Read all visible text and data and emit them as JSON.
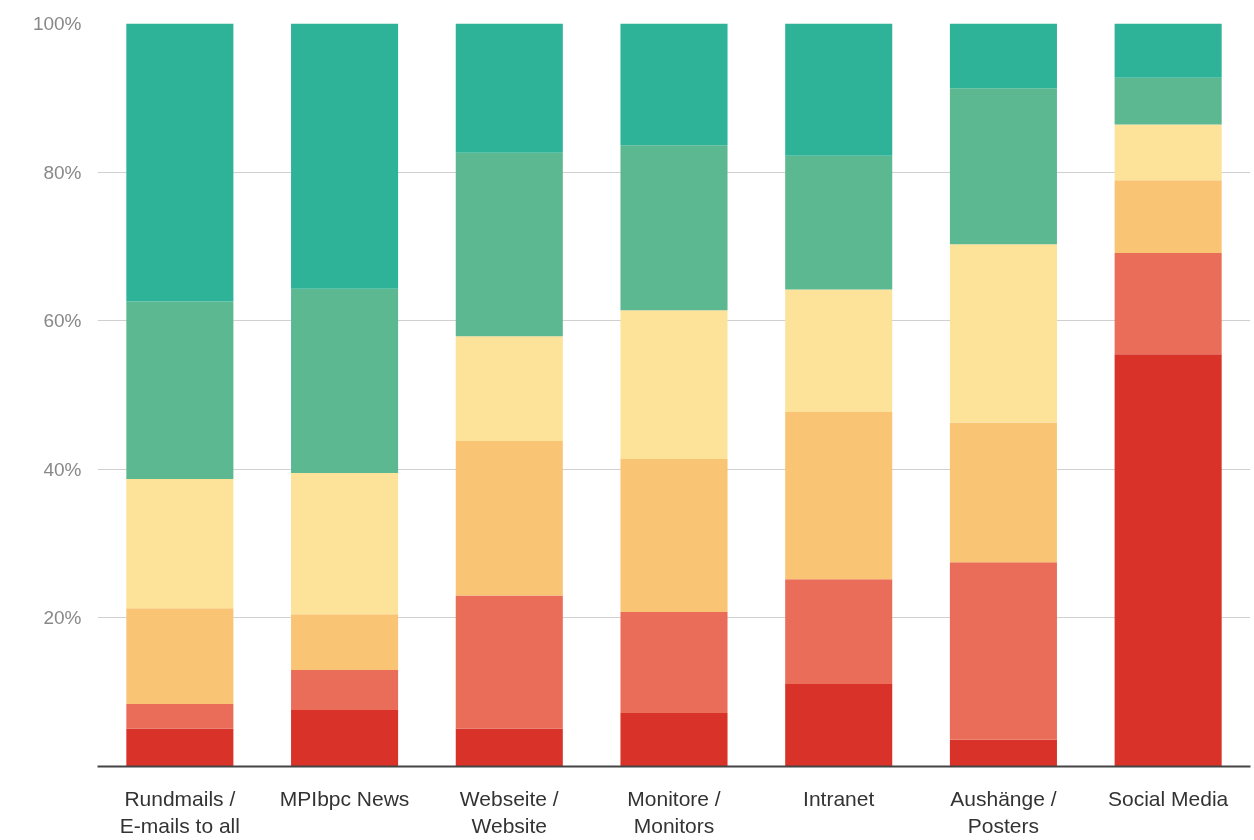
{
  "chart_data": {
    "type": "bar",
    "stacked": true,
    "categories": [
      "Rundmails / E-mails to all",
      "MPIbpc News",
      "Webseite / Website",
      "Monitore / Monitors",
      "Intranet",
      "Aushänge / Posters",
      "Social Media"
    ],
    "series": [
      {
        "color": "#d93229",
        "values": [
          5.1,
          7.6,
          5.1,
          7.2,
          11.1,
          3.6,
          55.5
        ]
      },
      {
        "color": "#ea6d5a",
        "values": [
          3.3,
          5.4,
          17.9,
          13.6,
          14.1,
          23.9,
          13.6
        ]
      },
      {
        "color": "#f9c574",
        "values": [
          12.9,
          7.5,
          20.8,
          20.6,
          22.5,
          18.8,
          9.8
        ]
      },
      {
        "color": "#fde299",
        "values": [
          17.4,
          19.0,
          14.1,
          20.0,
          16.5,
          24.0,
          7.5
        ]
      },
      {
        "color": "#5bb891",
        "values": [
          23.9,
          24.8,
          24.7,
          22.2,
          18.0,
          21.0,
          6.3
        ]
      },
      {
        "color": "#2eb398",
        "values": [
          37.4,
          35.7,
          17.4,
          16.4,
          17.8,
          8.7,
          7.3
        ]
      }
    ],
    "ylim": [
      0,
      100
    ],
    "yticks": [
      {
        "value": 20,
        "label": "20%"
      },
      {
        "value": 40,
        "label": "40%"
      },
      {
        "value": 60,
        "label": "60%"
      },
      {
        "value": 80,
        "label": "80%"
      },
      {
        "value": 100,
        "label": "100%"
      }
    ],
    "grid": "y"
  }
}
